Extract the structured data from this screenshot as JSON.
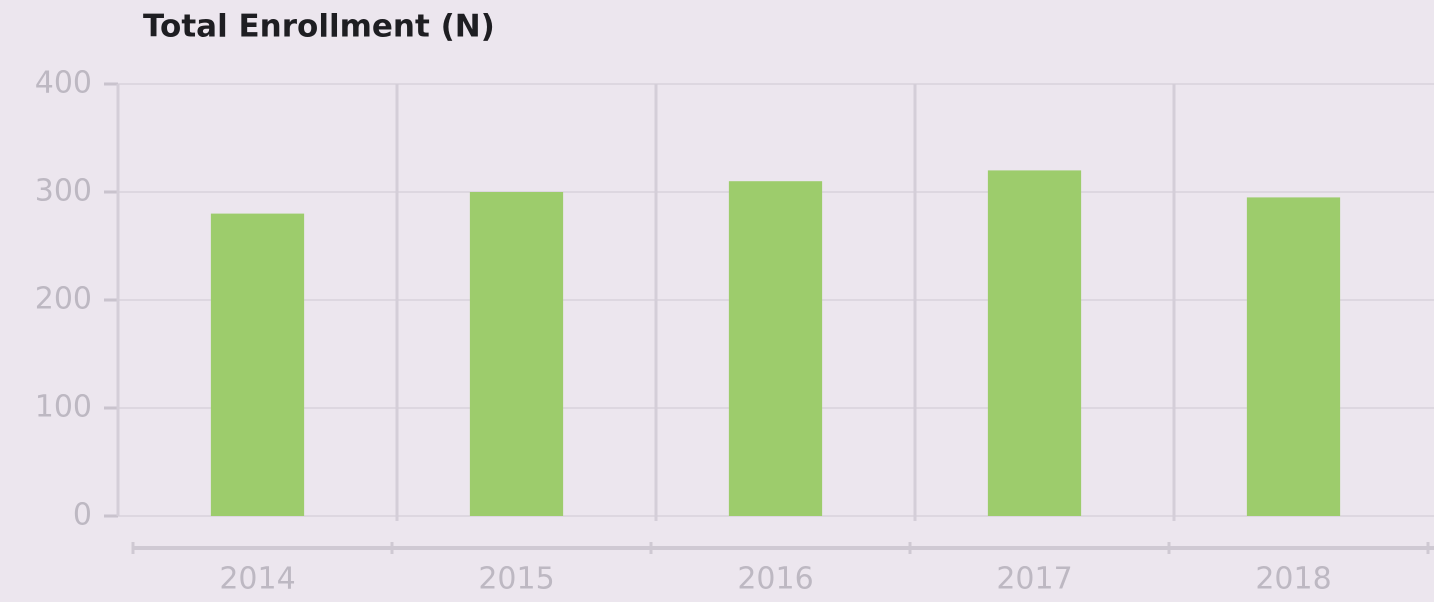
{
  "chart_data": {
    "type": "bar",
    "title": "Total Enrollment (N)",
    "categories": [
      "2014",
      "2015",
      "2016",
      "2017",
      "2018"
    ],
    "values": [
      280,
      300,
      310,
      320,
      295
    ],
    "color": "#9dcc6c",
    "ylim": [
      0,
      400
    ],
    "yticks": [
      0,
      100,
      200,
      300,
      400
    ],
    "grid": true
  }
}
